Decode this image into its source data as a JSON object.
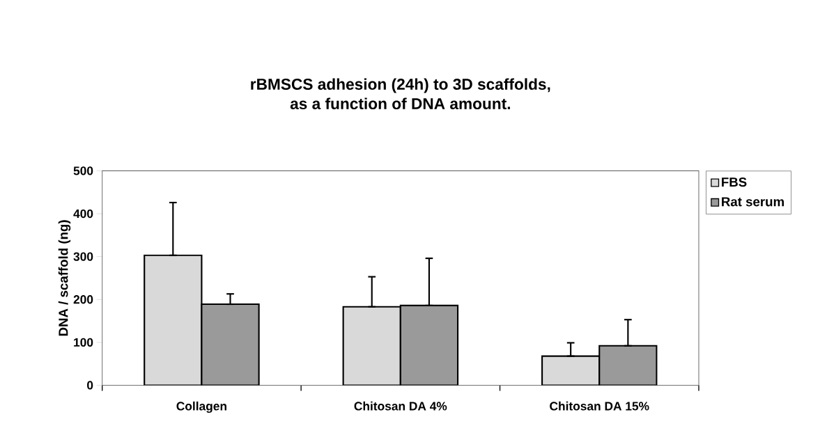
{
  "chart_data": {
    "type": "bar",
    "title": "rBMSCS adhesion (24h) to 3D scaffolds,\nas a function of DNA amount.",
    "ylabel": "DNA / scaffold (ng)",
    "categories": [
      "Collagen",
      "Chitosan DA 4%",
      "Chitosan DA 15%"
    ],
    "series": [
      {
        "name": "FBS",
        "color": "#d9d9d9",
        "values": [
          303,
          183,
          68
        ],
        "errors": [
          [
            303,
            426
          ],
          [
            183,
            253
          ],
          [
            68,
            99
          ]
        ]
      },
      {
        "name": "Rat serum",
        "color": "#9a9a9a",
        "values": [
          189,
          186,
          92
        ],
        "errors": [
          [
            189,
            213
          ],
          [
            186,
            296
          ],
          [
            92,
            153
          ]
        ]
      }
    ],
    "ylim": [
      0,
      500
    ],
    "yticks": [
      0,
      100,
      200,
      300,
      400,
      500
    ],
    "grid": false,
    "legend": "top right"
  }
}
